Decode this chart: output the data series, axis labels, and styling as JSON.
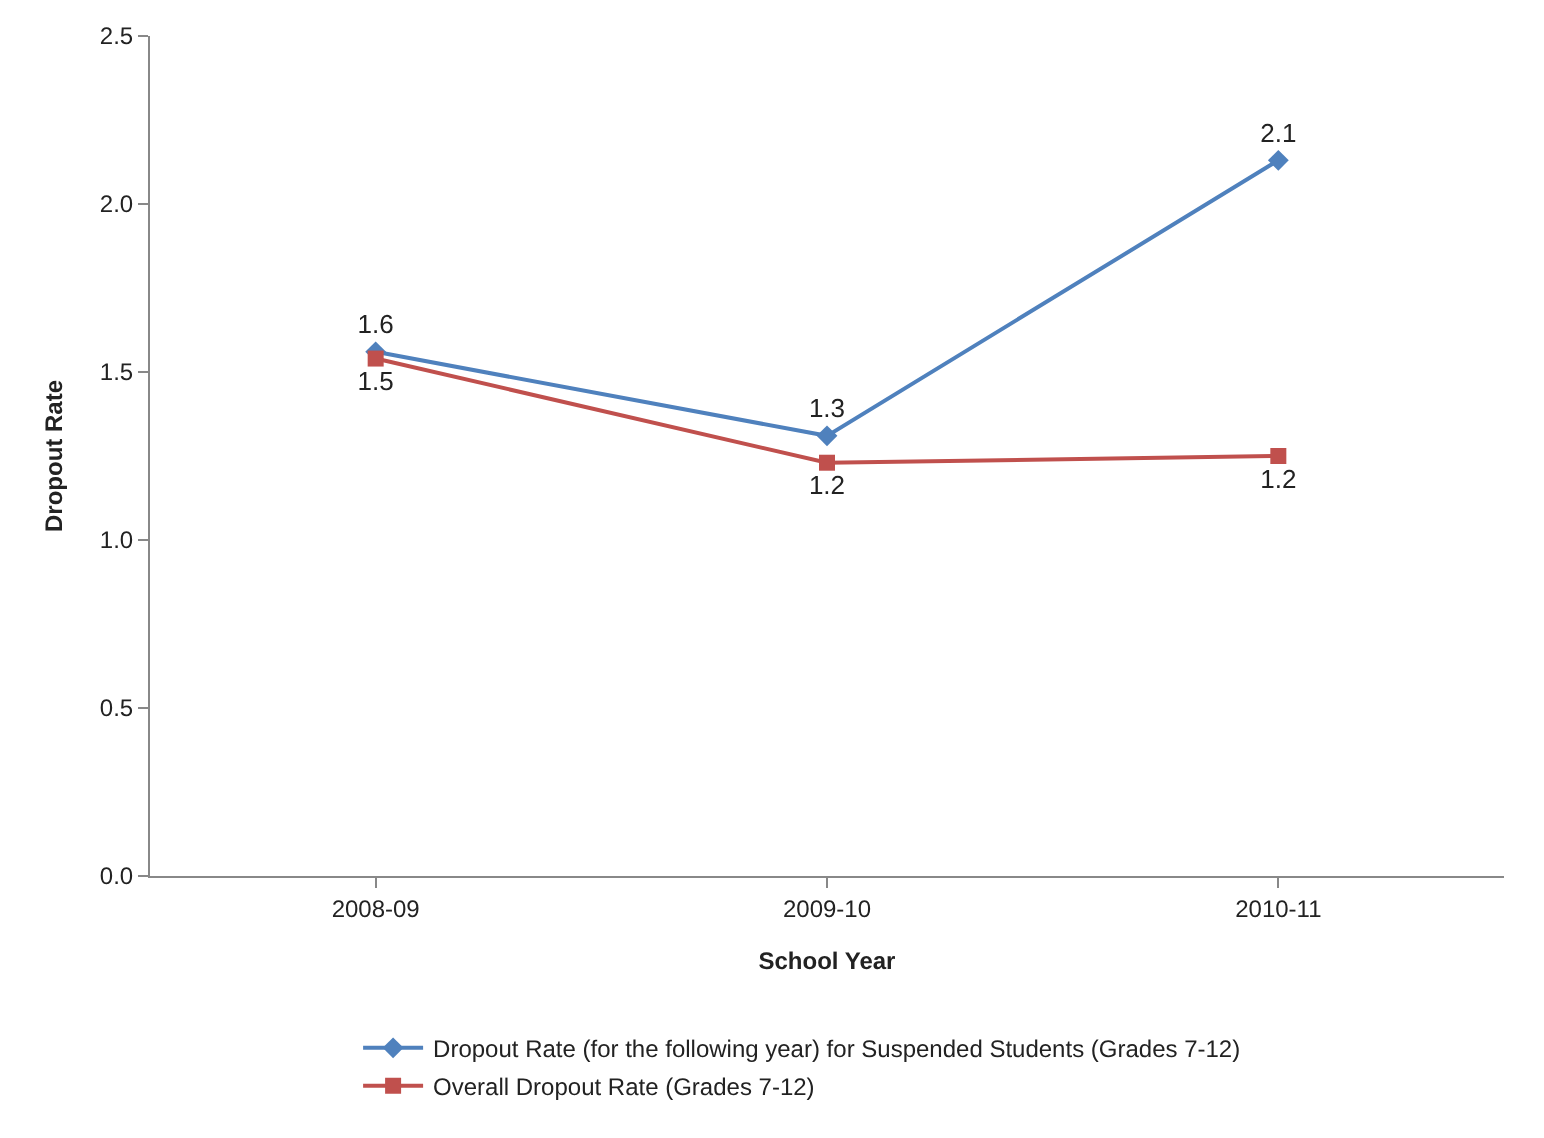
{
  "chart_data": {
    "type": "line",
    "xlabel": "School Year",
    "ylabel": "Dropout Rate",
    "categories": [
      "2008-09",
      "2009-10",
      "2010-11"
    ],
    "series": [
      {
        "name": "Dropout Rate (for the following year) for Suspended Students (Grades 7-12)",
        "color": "#4f81bd",
        "marker": "diamond",
        "values": [
          1.56,
          1.31,
          2.13
        ],
        "value_labels": [
          "1.6",
          "1.3",
          "2.1"
        ]
      },
      {
        "name": "Overall Dropout Rate (Grades 7-12)",
        "color": "#c0504d",
        "marker": "square",
        "values": [
          1.54,
          1.23,
          1.25
        ],
        "value_labels": [
          "1.5",
          "1.2",
          "1.2"
        ]
      }
    ],
    "ylim": [
      0,
      2.5
    ],
    "yticks": [
      "0.0",
      "0.5",
      "1.0",
      "1.5",
      "2.0",
      "2.5"
    ],
    "legend": "bottom",
    "line_style": "solid"
  }
}
